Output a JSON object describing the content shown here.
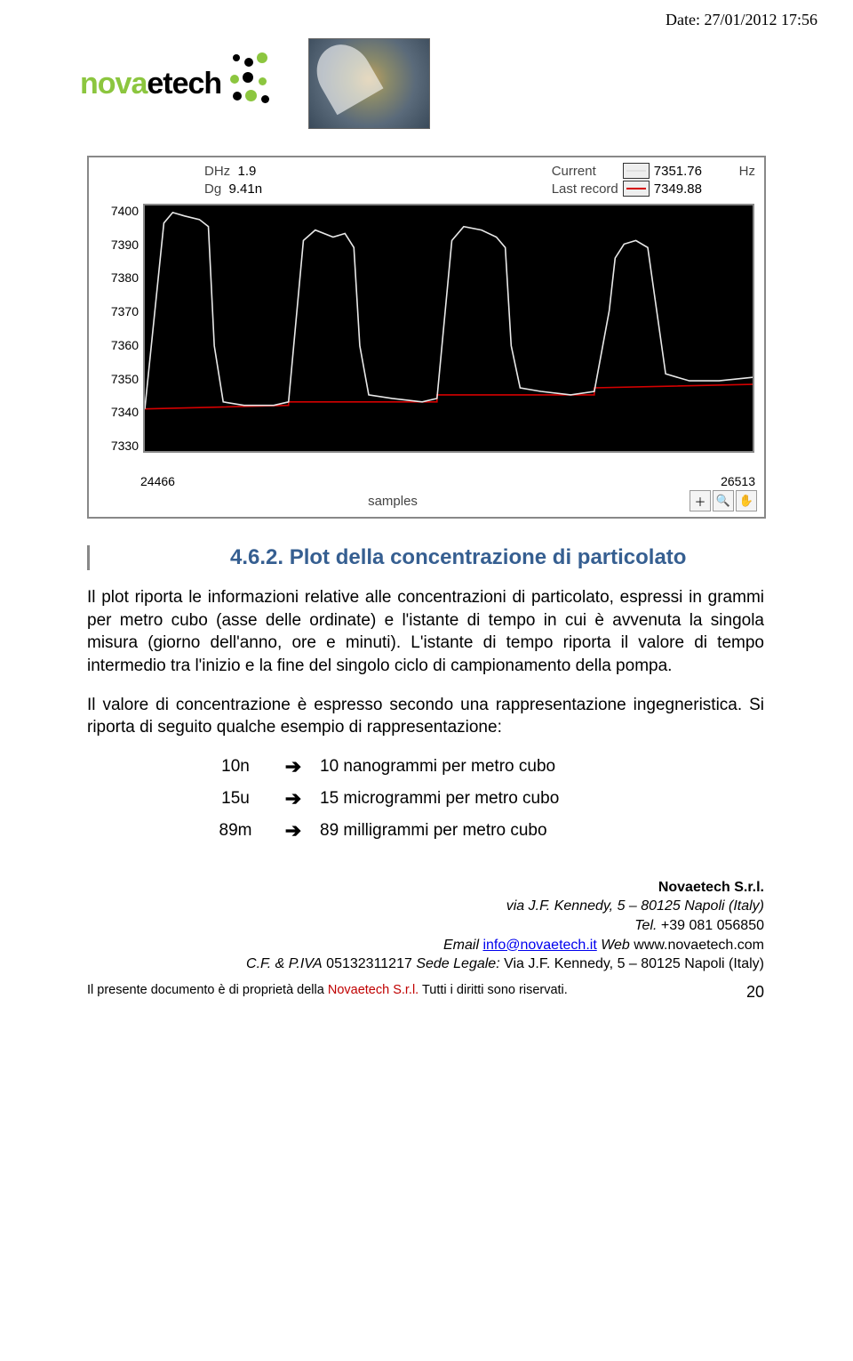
{
  "date_header": "Date: 27/01/2012 17:56",
  "logo": {
    "part1": "nova",
    "part2": "etech"
  },
  "chart": {
    "dhz_label": "DHz",
    "dhz_value": "1.9",
    "dg_label": "Dg",
    "dg_value": "9.41n",
    "current_label": "Current",
    "lastrecord_label": "Last record",
    "current_value": "7351.76",
    "lastrecord_value": "7349.88",
    "hz_label": "Hz",
    "y_ticks": [
      "7400",
      "7390",
      "7380",
      "7370",
      "7360",
      "7350",
      "7340",
      "7330"
    ],
    "y_min": 7330,
    "y_max": 7400,
    "x_min": 24466,
    "x_max": 26513,
    "xlabel": "samples",
    "background_color": "#000000",
    "line_color": "#e8e8e8",
    "record_color": "#d40000",
    "current_series": [
      [
        24466,
        7342
      ],
      [
        24530,
        7395
      ],
      [
        24560,
        7398
      ],
      [
        24600,
        7397
      ],
      [
        24650,
        7396
      ],
      [
        24680,
        7394
      ],
      [
        24700,
        7360
      ],
      [
        24730,
        7344
      ],
      [
        24800,
        7343
      ],
      [
        24900,
        7343
      ],
      [
        24950,
        7344
      ],
      [
        25000,
        7390
      ],
      [
        25040,
        7393
      ],
      [
        25100,
        7391
      ],
      [
        25140,
        7392
      ],
      [
        25170,
        7388
      ],
      [
        25190,
        7360
      ],
      [
        25220,
        7346
      ],
      [
        25300,
        7345
      ],
      [
        25400,
        7344
      ],
      [
        25450,
        7345
      ],
      [
        25500,
        7390
      ],
      [
        25540,
        7394
      ],
      [
        25600,
        7393
      ],
      [
        25650,
        7391
      ],
      [
        25680,
        7388
      ],
      [
        25700,
        7360
      ],
      [
        25730,
        7348
      ],
      [
        25800,
        7347
      ],
      [
        25900,
        7346
      ],
      [
        25980,
        7347
      ],
      [
        26030,
        7370
      ],
      [
        26050,
        7385
      ],
      [
        26080,
        7389
      ],
      [
        26120,
        7390
      ],
      [
        26160,
        7388
      ],
      [
        26190,
        7370
      ],
      [
        26220,
        7352
      ],
      [
        26300,
        7350
      ],
      [
        26400,
        7350
      ],
      [
        26513,
        7351
      ]
    ],
    "record_series": [
      [
        24466,
        7342
      ],
      [
        24950,
        7343
      ],
      [
        24950,
        7344
      ],
      [
        25450,
        7344
      ],
      [
        25450,
        7346
      ],
      [
        25980,
        7346
      ],
      [
        25980,
        7348
      ],
      [
        26513,
        7349
      ]
    ]
  },
  "section": {
    "number": "4.6.2.",
    "title": "Plot della concentrazione di particolato"
  },
  "para1": "Il plot riporta le informazioni relative alle concentrazioni di particolato, espressi in grammi per metro cubo (asse delle ordinate) e l'istante di tempo in cui è avvenuta la singola misura (giorno dell'anno, ore e minuti). L'istante di tempo riporta il valore di tempo intermedio tra l'inizio e la fine del singolo ciclo di campionamento della pompa.",
  "para2": "Il valore di concentrazione è espresso secondo una rappresentazione ingegneristica. Si riporta di seguito qualche esempio di rappresentazione:",
  "representation": [
    {
      "code": "10n",
      "desc": "10 nanogrammi per metro cubo"
    },
    {
      "code": "15u",
      "desc": "15 microgrammi per metro cubo"
    },
    {
      "code": "89m",
      "desc": "89 milligrammi per metro cubo"
    }
  ],
  "footer": {
    "company": "Novaetech S.r.l.",
    "addr": "via J.F. Kennedy, 5 – 80125 Napoli (Italy)",
    "tel_lbl": "Tel.",
    "tel": " +39 081 056850",
    "email_lbl": "Email ",
    "email": "info@novaetech.it",
    "web_lbl": "  Web ",
    "web": "www.novaetech.com",
    "cf_lbl": "C.F. & P.IVA",
    "cf": " 05132311217  ",
    "sede_lbl": "Sede Legale:",
    "sede": " Via J.F. Kennedy, 5 – 80125 Napoli (Italy)"
  },
  "footline": {
    "text1": "Il presente documento è di proprietà della ",
    "company": "Novaetech S.r.l.",
    "text2": " Tutti i diritti sono riservati.",
    "page": "20"
  }
}
